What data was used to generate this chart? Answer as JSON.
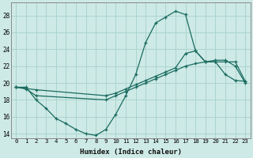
{
  "xlabel": "Humidex (Indice chaleur)",
  "xlim": [
    -0.5,
    23.5
  ],
  "ylim": [
    13.5,
    29.5
  ],
  "yticks": [
    14,
    16,
    18,
    20,
    22,
    24,
    26,
    28
  ],
  "xticks": [
    0,
    1,
    2,
    3,
    4,
    5,
    6,
    7,
    8,
    9,
    10,
    11,
    12,
    13,
    14,
    15,
    16,
    17,
    18,
    19,
    20,
    21,
    22,
    23
  ],
  "bg_color": "#ceeae6",
  "grid_color": "#aad4cf",
  "line_color": "#1a6b60",
  "line1_x": [
    0,
    1,
    2,
    3,
    4,
    5,
    6,
    7,
    8,
    9,
    10,
    11,
    12,
    13,
    14,
    15,
    16,
    17,
    18,
    19,
    20,
    21,
    22,
    23
  ],
  "line1_y": [
    19.5,
    19.5,
    18.0,
    17.0,
    15.8,
    15.2,
    14.5,
    14.0,
    13.8,
    14.5,
    16.3,
    18.5,
    21.0,
    24.8,
    27.1,
    27.8,
    28.5,
    28.1,
    23.8,
    22.5,
    22.5,
    21.0,
    20.3,
    20.2
  ],
  "line2_x": [
    0,
    2,
    9,
    10,
    11,
    12,
    13,
    14,
    15,
    16,
    17,
    18,
    19,
    20,
    21,
    22,
    23
  ],
  "line2_y": [
    19.5,
    19.2,
    18.5,
    18.8,
    19.3,
    19.8,
    20.3,
    20.8,
    21.3,
    21.8,
    23.5,
    23.8,
    22.5,
    22.5,
    22.5,
    22.5,
    20.2
  ],
  "line3_x": [
    0,
    1,
    2,
    9,
    10,
    11,
    12,
    13,
    14,
    15,
    16,
    17,
    18,
    19,
    20,
    21,
    22,
    23
  ],
  "line3_y": [
    19.5,
    19.3,
    18.5,
    18.0,
    18.5,
    19.0,
    19.5,
    20.0,
    20.5,
    21.0,
    21.5,
    22.0,
    22.3,
    22.5,
    22.7,
    22.7,
    22.0,
    20.0
  ]
}
